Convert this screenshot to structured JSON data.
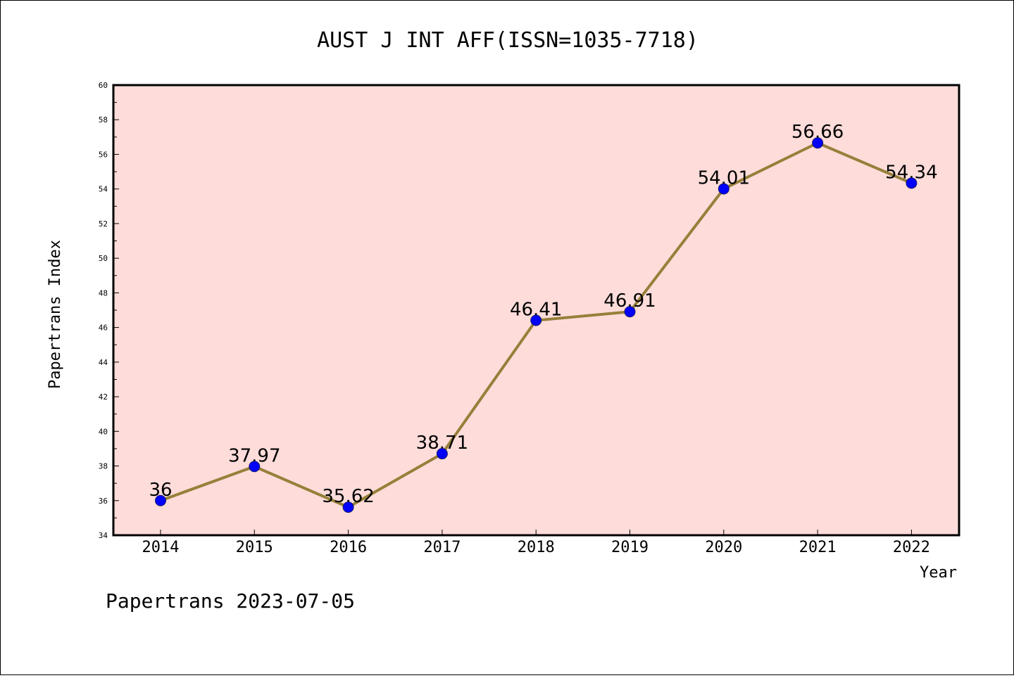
{
  "chart_data": {
    "type": "line",
    "title": "AUST J INT AFF(ISSN=1035-7718)",
    "xlabel": "Year",
    "ylabel": "Papertrans Index",
    "categories": [
      "2014",
      "2015",
      "2016",
      "2017",
      "2018",
      "2019",
      "2020",
      "2021",
      "2022"
    ],
    "values": [
      36,
      37.97,
      35.62,
      38.71,
      46.41,
      46.91,
      54.01,
      56.66,
      54.34
    ],
    "data_labels": [
      "36",
      "37.97",
      "35.62",
      "38.71",
      "46.41",
      "46.91",
      "54.01",
      "56.66",
      "54.34"
    ],
    "ylim": [
      34,
      60
    ],
    "yticks": [
      34,
      36,
      38,
      40,
      42,
      44,
      46,
      48,
      50,
      52,
      54,
      56,
      58,
      60
    ],
    "grid": false,
    "colors": {
      "plot_background": "#fddcda",
      "line": "#96803a",
      "marker": "#0000ff"
    }
  },
  "footer": "Papertrans 2023-07-05"
}
